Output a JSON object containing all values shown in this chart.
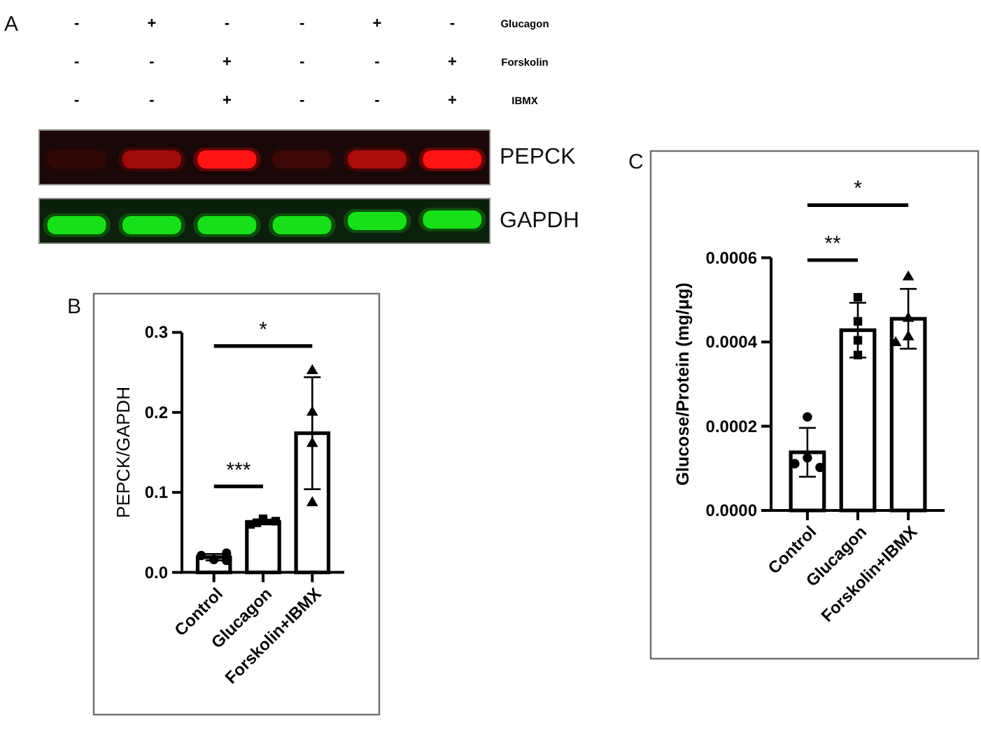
{
  "chart_data": [
    {
      "type": "other",
      "title": "A",
      "y2_categories": [
        "Glucagon",
        "Forskolin",
        "IBMX"
      ],
      "cell_labels": [
        [
          "-",
          "+",
          "-",
          "-",
          "+",
          "-"
        ],
        [
          "-",
          "-",
          "+",
          "-",
          "-",
          "+"
        ],
        [
          "-",
          "-",
          "+",
          "-",
          "-",
          "+"
        ]
      ],
      "annotations": [
        "PEPCK",
        "GAPDH"
      ]
    },
    {
      "type": "bar",
      "title": "B",
      "ylabel": "PEPCK/GAPDH",
      "categories": [
        "Control",
        "Glucagon",
        "Forskolin+IBMX"
      ],
      "series": [
        {
          "color": "#ffffff",
          "values": [
            0.019,
            0.063,
            0.174
          ],
          "errors": [
            0.004,
            0.003,
            0.07
          ]
        },
        {
          "type": "scatter",
          "marker": "circle",
          "color": "#000000",
          "x": [
            "Control",
            "Control",
            "Control",
            "Control"
          ],
          "values": [
            0.016,
            0.021,
            0.024,
            0.015
          ]
        },
        {
          "type": "scatter",
          "marker": "square",
          "color": "#000000",
          "x": [
            "Glucagon",
            "Glucagon",
            "Glucagon",
            "Glucagon"
          ],
          "values": [
            0.067,
            0.06,
            0.064,
            0.062
          ]
        },
        {
          "type": "scatter",
          "marker": "triangle",
          "color": "#000000",
          "x": [
            "Forskolin+IBMX",
            "Forskolin+IBMX",
            "Forskolin+IBMX",
            "Forskolin+IBMX"
          ],
          "values": [
            0.252,
            0.2,
            0.161,
            0.087
          ]
        }
      ],
      "ylim": [
        0,
        0.3
      ],
      "yticks": [
        {
          "value": 0,
          "label": "0.0"
        },
        0.1,
        0.2,
        0.3
      ],
      "annotations": [
        "***",
        "*"
      ]
    },
    {
      "type": "bar",
      "title": "C",
      "ylabel": "Glucose/Protein (mg/μg)",
      "categories": [
        "Control",
        "Glucagon",
        "Forskolin+IBMX"
      ],
      "series": [
        {
          "color": "#ffffff",
          "values": [
            0.000138,
            0.000428,
            0.000455
          ],
          "errors": [
            5.8e-05,
            6.5e-05,
            7.1e-05
          ]
        },
        {
          "type": "scatter",
          "marker": "circle",
          "color": "#000000",
          "x": [
            "Control",
            "Control",
            "Control",
            "Control"
          ],
          "values": [
            0.000222,
            0.000125,
            0.000111,
            0.000102
          ]
        },
        {
          "type": "scatter",
          "marker": "square",
          "color": "#000000",
          "x": [
            "Glucagon",
            "Glucagon",
            "Glucagon",
            "Glucagon"
          ],
          "values": [
            0.000506,
            0.000449,
            0.000404,
            0.000369
          ]
        },
        {
          "type": "scatter",
          "marker": "triangle",
          "color": "#000000",
          "x": [
            "Forskolin+IBMX",
            "Forskolin+IBMX",
            "Forskolin+IBMX",
            "Forskolin+IBMX"
          ],
          "values": [
            0.000554,
            0.000456,
            0.000412,
            0.000398
          ]
        }
      ],
      "ylim": [
        0,
        0.0006
      ],
      "yticks": [
        {
          "value": 0,
          "label": "0.0000"
        },
        0.0002,
        0.0004,
        0.0006
      ],
      "annotations": [
        "**",
        "*"
      ]
    }
  ]
}
